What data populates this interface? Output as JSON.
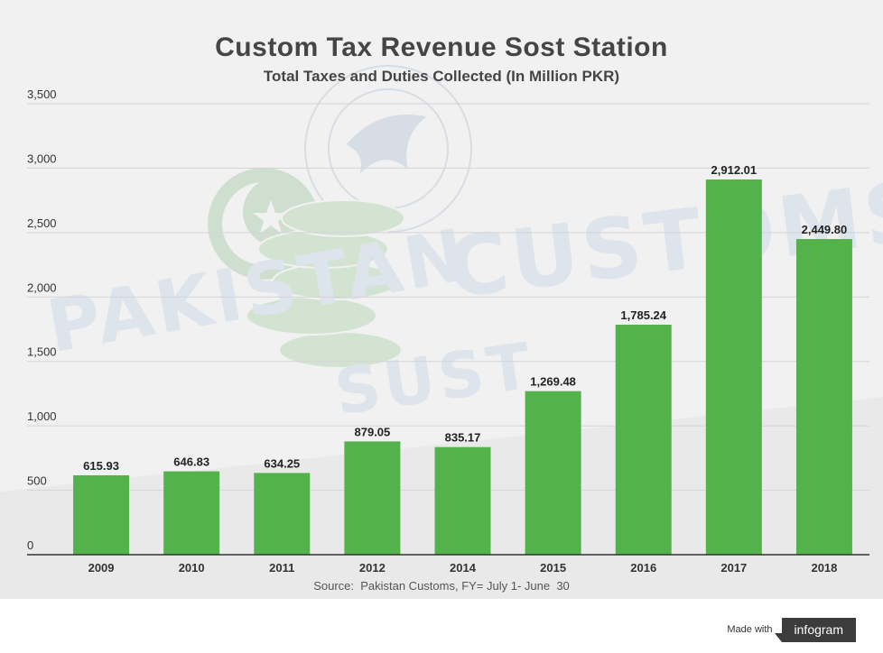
{
  "chart_data": {
    "type": "bar",
    "title": "Custom Tax Revenue Sost Station",
    "subtitle": "Total Taxes and Duties Collected (In Million PKR)",
    "categories": [
      "2009",
      "2010",
      "2011",
      "2012",
      "2014",
      "2015",
      "2016",
      "2017",
      "2018"
    ],
    "values": [
      615.93,
      646.83,
      634.25,
      879.05,
      835.17,
      1269.48,
      1785.24,
      2912.01,
      2449.8
    ],
    "value_labels": [
      "615.93",
      "646.83",
      "634.25",
      "879.05",
      "835.17",
      "1,269.48",
      "1,785.24",
      "2,912.01",
      "2,449.80"
    ],
    "y_ticks": [
      0,
      500,
      1000,
      1500,
      2000,
      2500,
      3000,
      3500
    ],
    "y_tick_labels": [
      "0",
      "500",
      "1,000",
      "1,500",
      "2,000",
      "2,500",
      "3,000",
      "3,500"
    ],
    "ylim": [
      0,
      3500
    ],
    "xlabel": "",
    "ylabel": "",
    "grid": true,
    "bar_color": "#53b24b",
    "source": "Source:  Pakistan Customs, FY= July 1- June  30"
  },
  "background": {
    "watermark_word_1": "PAKISTAN",
    "watermark_word_2": "CUSTOMS",
    "watermark_word_3": "SUST",
    "icons": [
      "pakistan-flag-crescent-star-icon",
      "coin-stack-icon",
      "customs-eagle-seal-icon"
    ]
  },
  "footer": {
    "made_with": "Made with",
    "brand": "infogram"
  }
}
